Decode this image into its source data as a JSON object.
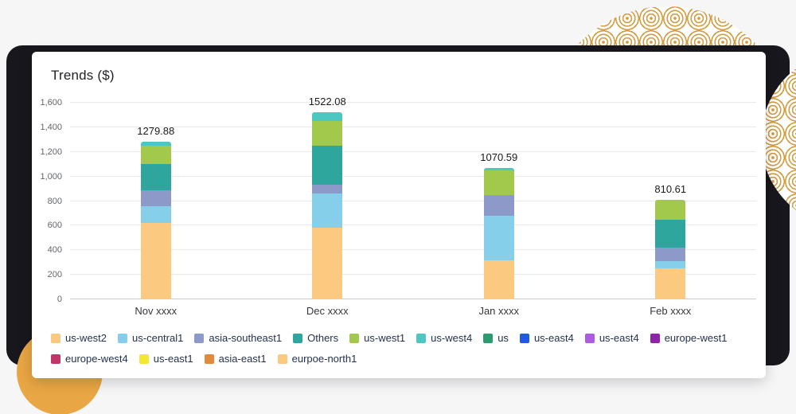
{
  "colors": {
    "page_bg": "#F6F6F7",
    "panel": "#17171D",
    "card": "#FFFFFF",
    "gold_pattern": "#D49B3E",
    "gold_solid": "#E9A644",
    "grid": "#EAEAEC",
    "grid_zero": "#C9CBD0",
    "axis_text": "#63666B",
    "xlabel_text": "#35373C",
    "legend_text": "#24324E",
    "total_text": "#1A1B1E"
  },
  "chart_data": {
    "type": "bar",
    "stacked": true,
    "title": "Trends ($)",
    "categories": [
      "Nov xxxx",
      "Dec xxxx",
      "Jan xxxx",
      "Feb xxxx"
    ],
    "totals": [
      "1279.88",
      "1522.08",
      "1070.59",
      "810.61"
    ],
    "ylim": [
      0,
      1600
    ],
    "grid": true,
    "legend_position": "bottom",
    "legend_break": 10,
    "yticks": [
      {
        "value": 0,
        "label": "0"
      },
      {
        "value": 200,
        "label": "200"
      },
      {
        "value": 400,
        "label": "400"
      },
      {
        "value": 600,
        "label": "600"
      },
      {
        "value": 800,
        "label": "800"
      },
      {
        "value": 1000,
        "label": "1,000"
      },
      {
        "value": 1200,
        "label": "1,200"
      },
      {
        "value": 1400,
        "label": "1,400"
      },
      {
        "value": 1600,
        "label": "1,600"
      }
    ],
    "series": [
      {
        "name": "us-west2",
        "color": "#FBCA80",
        "values": [
          620,
          580,
          320,
          250
        ]
      },
      {
        "name": "us-central1",
        "color": "#85CFEA",
        "values": [
          140,
          280,
          360,
          60
        ]
      },
      {
        "name": "asia-southeast1",
        "color": "#8D99C9",
        "values": [
          130,
          70,
          170,
          110
        ]
      },
      {
        "name": "Others",
        "color": "#2EA69E",
        "values": [
          210,
          320,
          0,
          230
        ]
      },
      {
        "name": "us-west1",
        "color": "#A2C94C",
        "values": [
          150,
          200,
          200,
          160.61
        ]
      },
      {
        "name": "us-west4",
        "color": "#4CC8C0",
        "values": [
          29.88,
          72.08,
          20.59,
          0
        ]
      },
      {
        "name": "us",
        "color": "#2C9B70",
        "values": [
          0,
          0,
          0,
          0
        ]
      },
      {
        "name": "us-east4",
        "color": "#2158E8",
        "values": [
          0,
          0,
          0,
          0
        ]
      },
      {
        "name": "us-east4",
        "color": "#AD5CE2",
        "values": [
          0,
          0,
          0,
          0
        ]
      },
      {
        "name": "europe-west1",
        "color": "#8E24AA",
        "values": [
          0,
          0,
          0,
          0
        ]
      },
      {
        "name": "europe-west4",
        "color": "#C2356B",
        "values": [
          0,
          0,
          0,
          0
        ]
      },
      {
        "name": "us-east1",
        "color": "#F4E731",
        "values": [
          0,
          0,
          0,
          0
        ]
      },
      {
        "name": "asia-east1",
        "color": "#E18A3D",
        "values": [
          0,
          0,
          0,
          0
        ]
      },
      {
        "name": "eurpoe-north1",
        "color": "#FBCA80",
        "values": [
          0,
          0,
          0,
          0
        ]
      }
    ]
  }
}
